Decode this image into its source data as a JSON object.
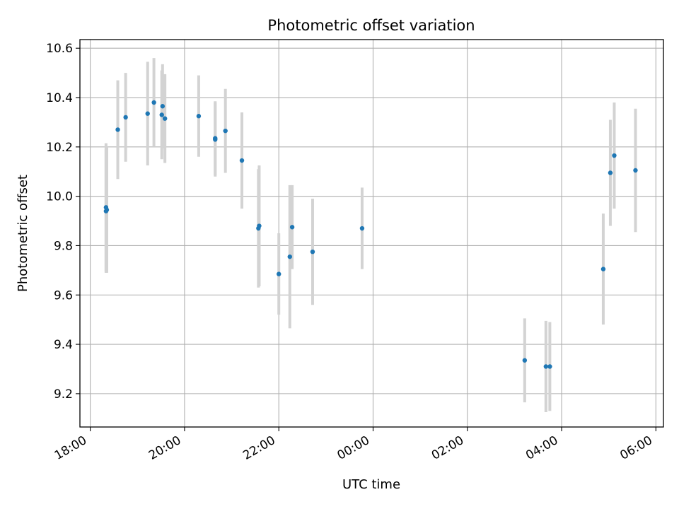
{
  "chart_data": {
    "type": "scatter",
    "title": "Photometric offset variation",
    "xlabel": "UTC time",
    "ylabel": "Photometric offset",
    "x_ticks": [
      "18:00",
      "20:00",
      "22:00",
      "00:00",
      "02:00",
      "04:00",
      "06:00"
    ],
    "x_tick_hours": [
      0,
      2,
      4,
      6,
      8,
      10,
      12
    ],
    "y_ticks": [
      "9.2",
      "9.4",
      "9.6",
      "9.8",
      "10.0",
      "10.2",
      "10.4",
      "10.6"
    ],
    "xlim_hours_from_18": [
      -0.22,
      12.16
    ],
    "ylim": [
      9.065,
      10.635
    ],
    "grid": true,
    "point_color": "#1f77b4",
    "errorbar_color": "#d3d3d3",
    "points": [
      {
        "t": "18:20",
        "y": 9.955,
        "err": 0.26
      },
      {
        "t": "18:20",
        "y": 9.94,
        "err": 0.25
      },
      {
        "t": "18:21",
        "y": 9.945,
        "err": 0.255
      },
      {
        "t": "18:35",
        "y": 10.27,
        "err": 0.2
      },
      {
        "t": "18:45",
        "y": 10.32,
        "err": 0.18
      },
      {
        "t": "19:13",
        "y": 10.335,
        "err": 0.21
      },
      {
        "t": "19:21",
        "y": 10.38,
        "err": 0.18
      },
      {
        "t": "19:31",
        "y": 10.33,
        "err": 0.18
      },
      {
        "t": "19:32",
        "y": 10.365,
        "err": 0.17
      },
      {
        "t": "19:35",
        "y": 10.315,
        "err": 0.18
      },
      {
        "t": "20:18",
        "y": 10.325,
        "err": 0.165
      },
      {
        "t": "20:39",
        "y": 10.23,
        "err": 0.15
      },
      {
        "t": "20:39",
        "y": 10.235,
        "err": 0.15
      },
      {
        "t": "20:52",
        "y": 10.265,
        "err": 0.17
      },
      {
        "t": "21:13",
        "y": 10.145,
        "err": 0.195
      },
      {
        "t": "21:34",
        "y": 9.87,
        "err": 0.24
      },
      {
        "t": "21:35",
        "y": 9.88,
        "err": 0.245
      },
      {
        "t": "22:00",
        "y": 9.685,
        "err": 0.165
      },
      {
        "t": "22:14",
        "y": 9.755,
        "err": 0.29
      },
      {
        "t": "22:17",
        "y": 9.875,
        "err": 0.17
      },
      {
        "t": "22:43",
        "y": 9.775,
        "err": 0.215
      },
      {
        "t": "23:46",
        "y": 9.87,
        "err": 0.165
      },
      {
        "t": "03:13",
        "y": 9.335,
        "err": 0.17
      },
      {
        "t": "03:40",
        "y": 9.31,
        "err": 0.185
      },
      {
        "t": "03:45",
        "y": 9.31,
        "err": 0.18
      },
      {
        "t": "04:53",
        "y": 9.705,
        "err": 0.225
      },
      {
        "t": "05:02",
        "y": 10.095,
        "err": 0.215
      },
      {
        "t": "05:07",
        "y": 10.165,
        "err": 0.215
      },
      {
        "t": "05:34",
        "y": 10.105,
        "err": 0.25
      }
    ]
  }
}
